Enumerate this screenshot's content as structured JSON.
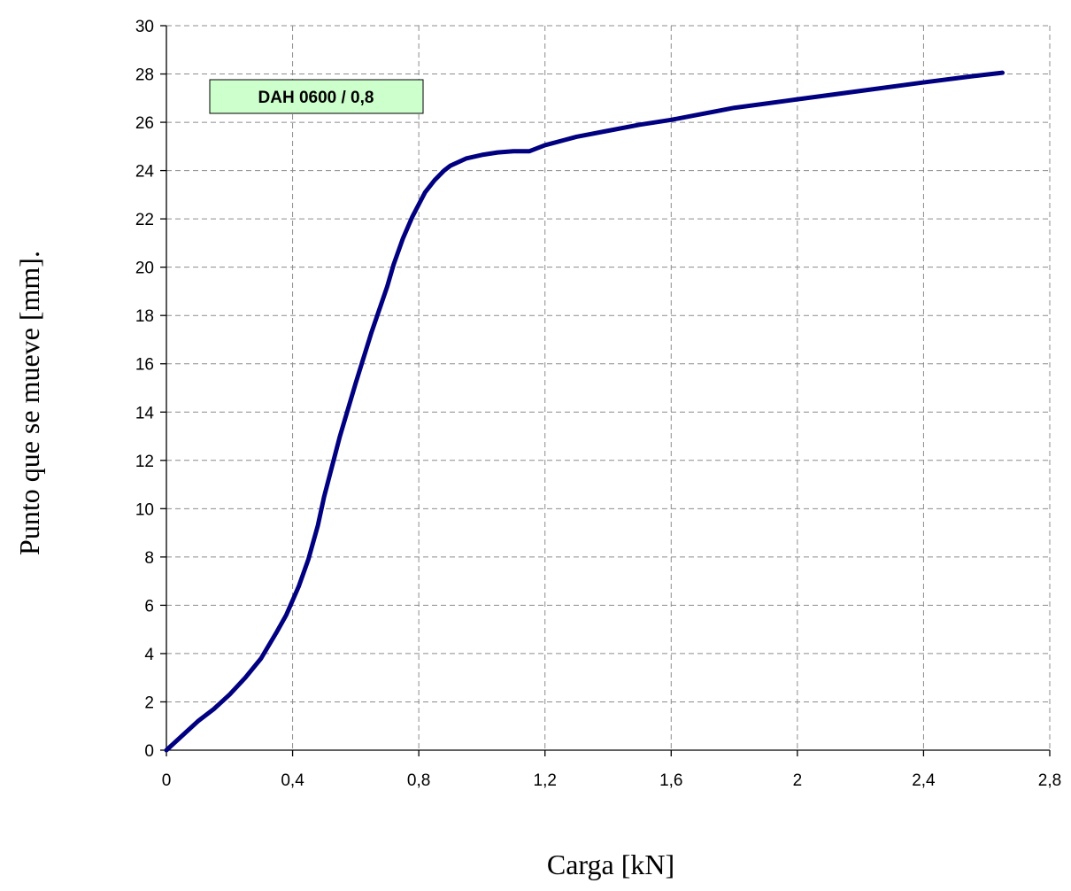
{
  "chart_data": {
    "type": "line",
    "title": "",
    "xlabel": "Carga [kN]",
    "ylabel": "Punto que se mueve [mm].",
    "xlim": [
      0,
      2.8
    ],
    "ylim": [
      0,
      30
    ],
    "x_ticks": [
      0,
      0.4,
      0.8,
      1.2,
      1.6,
      2,
      2.4,
      2.8
    ],
    "x_tick_labels": [
      "0",
      "0,4",
      "0,8",
      "1,2",
      "1,6",
      "2",
      "2,4",
      "2,8"
    ],
    "y_ticks": [
      0,
      2,
      4,
      6,
      8,
      10,
      12,
      14,
      16,
      18,
      20,
      22,
      24,
      26,
      28,
      30
    ],
    "y_tick_labels": [
      "0",
      "2",
      "4",
      "6",
      "8",
      "10",
      "12",
      "14",
      "16",
      "18",
      "20",
      "22",
      "24",
      "26",
      "28",
      "30"
    ],
    "grid": true,
    "grid_style": "dashed",
    "annotation": "DAH 0600 / 0,8",
    "annotation_bg_color": "#ccffcc",
    "line_color": "#000080",
    "series": [
      {
        "x": [
          0,
          0.05,
          0.1,
          0.15,
          0.2,
          0.25,
          0.3,
          0.35,
          0.38,
          0.42,
          0.45,
          0.48,
          0.5,
          0.52,
          0.55,
          0.6,
          0.65,
          0.7,
          0.72,
          0.75,
          0.78,
          0.8,
          0.82,
          0.85,
          0.88,
          0.9,
          0.95,
          1.0,
          1.05,
          1.1,
          1.15,
          1.2,
          1.3,
          1.4,
          1.5,
          1.6,
          1.8,
          2.0,
          2.2,
          2.4,
          2.55,
          2.65
        ],
        "y": [
          0,
          0.6,
          1.2,
          1.7,
          2.3,
          3.0,
          3.8,
          4.9,
          5.6,
          6.8,
          7.9,
          9.3,
          10.5,
          11.5,
          13.0,
          15.2,
          17.3,
          19.2,
          20.1,
          21.2,
          22.1,
          22.6,
          23.1,
          23.6,
          24.0,
          24.2,
          24.5,
          24.65,
          24.75,
          24.8,
          24.8,
          25.05,
          25.4,
          25.65,
          25.9,
          26.1,
          26.6,
          26.95,
          27.3,
          27.65,
          27.9,
          28.05
        ]
      }
    ]
  }
}
